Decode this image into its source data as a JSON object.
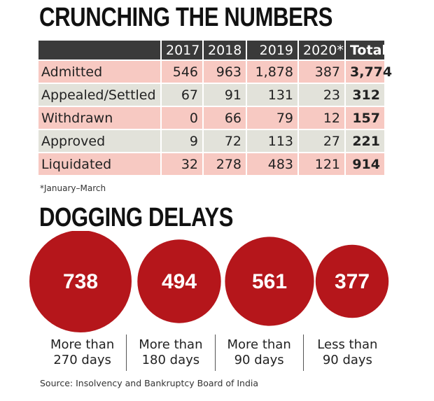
{
  "title1": "CRUNCHING THE NUMBERS",
  "title2": "DOGGING DELAYS",
  "table": {
    "headers": [
      "",
      "2017",
      "2018",
      "2019",
      "2020*",
      "Total"
    ],
    "rows": [
      {
        "label": "Admitted",
        "values": [
          "546",
          "963",
          "1,878",
          "387"
        ],
        "total": "3,774"
      },
      {
        "label": "Appealed/Settled",
        "values": [
          "67",
          "91",
          "131",
          "23"
        ],
        "total": "312"
      },
      {
        "label": "Withdrawn",
        "values": [
          "0",
          "66",
          "79",
          "12"
        ],
        "total": "157"
      },
      {
        "label": "Approved",
        "values": [
          "9",
          "72",
          "113",
          "27"
        ],
        "total": "221"
      },
      {
        "label": "Liquidated",
        "values": [
          "32",
          "278",
          "483",
          "121"
        ],
        "total": "914"
      }
    ]
  },
  "footnote": "*January–March",
  "source": "Source: Insolvency and Bankruptcy Board of India",
  "colors": {
    "bubble": "#b5161b",
    "header_bg": "#3a3a3a",
    "row_pink": "#f7c9c2",
    "row_grey": "#e2e2da"
  },
  "chart_data": {
    "type": "bubble",
    "title": "DOGGING DELAYS",
    "categories": [
      "More than 270 days",
      "More than 180 days",
      "More than 90 days",
      "Less than 90 days"
    ],
    "label_lines": [
      [
        "More than",
        "270 days"
      ],
      [
        "More than",
        "180 days"
      ],
      [
        "More than",
        "90 days"
      ],
      [
        "Less than",
        "90 days"
      ]
    ],
    "values": [
      738,
      494,
      561,
      377
    ],
    "value_labels": [
      "738",
      "494",
      "561",
      "377"
    ]
  }
}
